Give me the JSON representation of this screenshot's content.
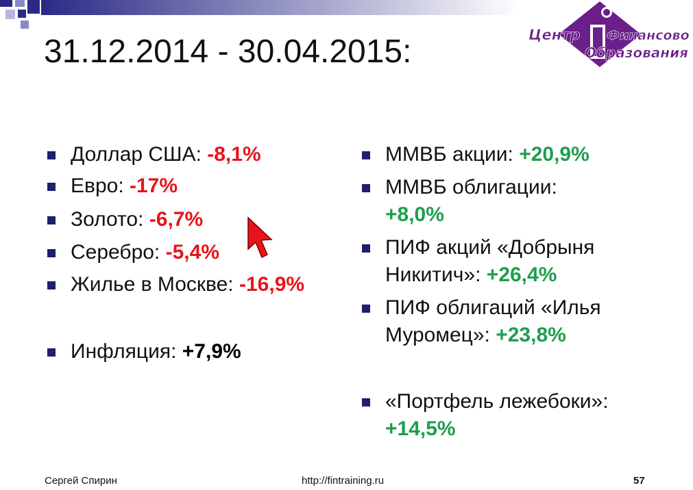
{
  "header": {
    "title": "31.12.2014 - 30.04.2015:"
  },
  "logo": {
    "line1": "Центр",
    "line2": "Финансового",
    "line3": "Образования"
  },
  "left_list": [
    {
      "label": "Доллар США:",
      "value": "-8,1%"
    },
    {
      "label": "Евро:",
      "value": "-17%"
    },
    {
      "label": "Золото:",
      "value": "-6,7%"
    },
    {
      "label": "Серебро:",
      "value": "-5,4%"
    },
    {
      "label": "Жилье в Москве:",
      "value": "-16,9%"
    },
    {
      "label": "Инфляция:",
      "value": "+7,9%"
    }
  ],
  "right_list": [
    {
      "label": "ММВБ акции:",
      "value": "+20,9%"
    },
    {
      "label": "ММВБ облигации:",
      "value": "+8,0%"
    },
    {
      "label": "ПИФ акций «Добрыня Никитич»:",
      "value": "+26,4%"
    },
    {
      "label": "ПИФ облигаций «Илья Муромец»:",
      "value": "+23,8%"
    },
    {
      "label": "«Портфель лежебоки»:",
      "value": "+14,5%"
    }
  ],
  "footer": {
    "author": "Сергей Спирин",
    "url": "http://fintraining.ru",
    "page": "57"
  }
}
